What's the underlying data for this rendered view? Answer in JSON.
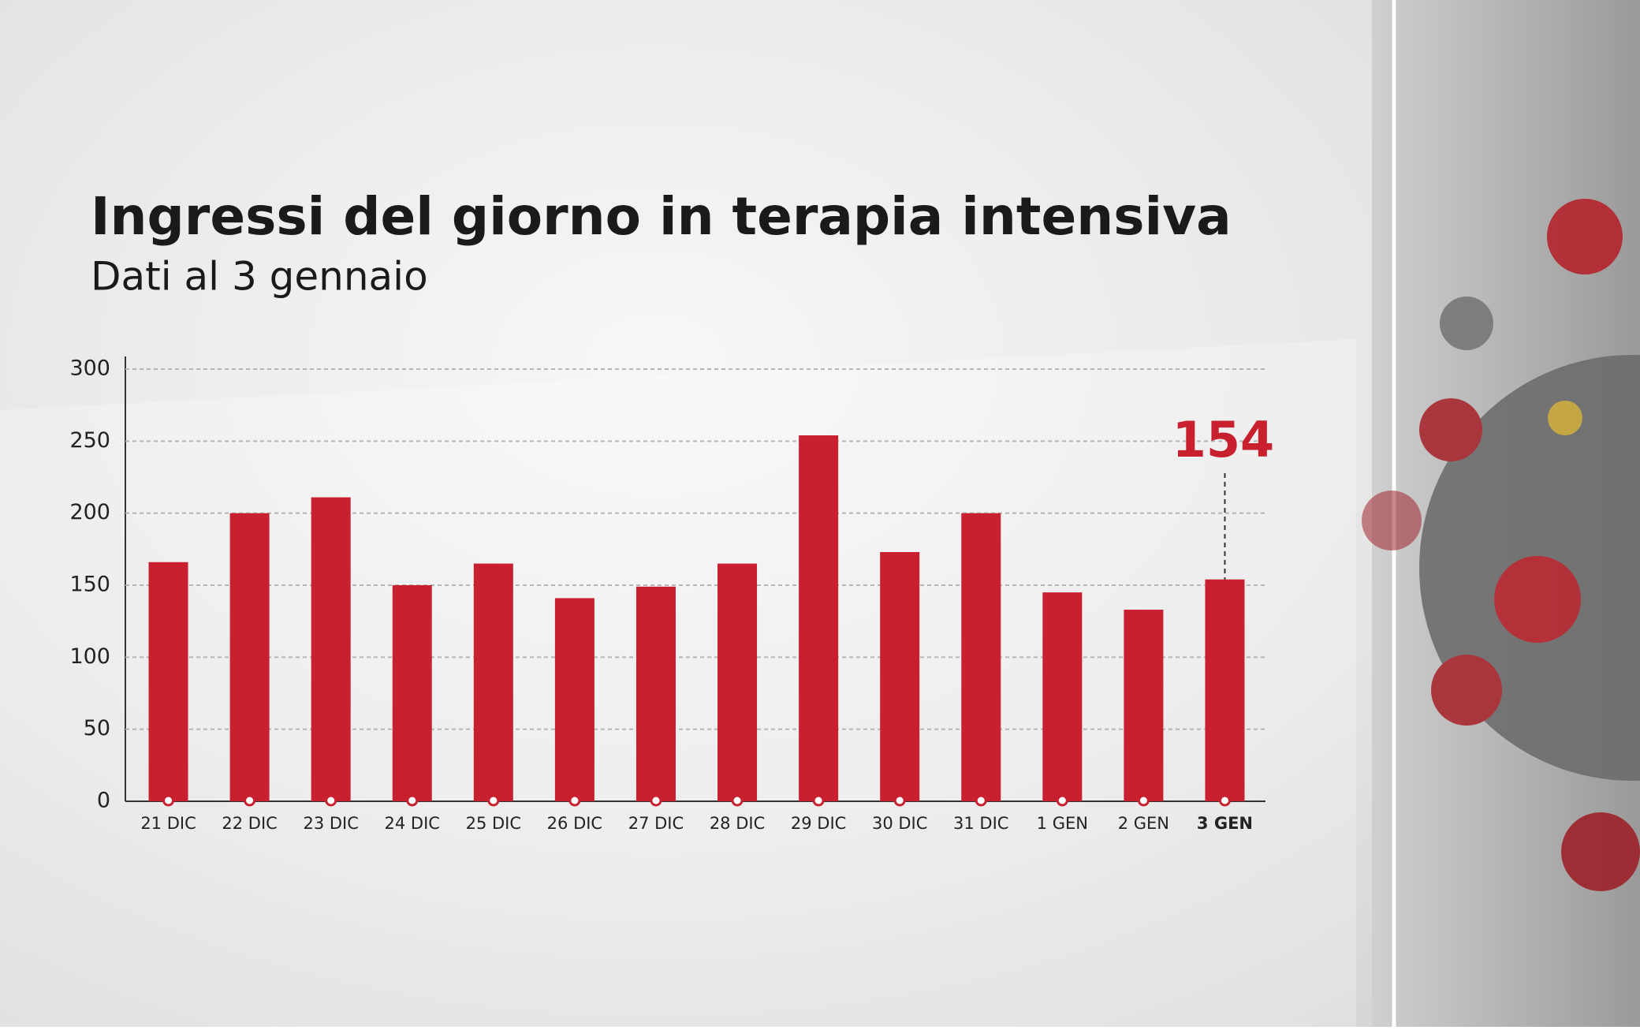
{
  "chart_data": {
    "type": "bar",
    "title": "Ingressi del giorno in terapia intensiva",
    "subtitle": "Dati al 3 gennaio",
    "categories": [
      "21 DIC",
      "22 DIC",
      "23 DIC",
      "24 DIC",
      "25 DIC",
      "26 DIC",
      "27 DIC",
      "28 DIC",
      "29 DIC",
      "30 DIC",
      "31 DIC",
      "1 GEN",
      "2 GEN",
      "3 GEN"
    ],
    "values": [
      166,
      200,
      211,
      150,
      165,
      141,
      149,
      165,
      254,
      173,
      200,
      145,
      133,
      154
    ],
    "color": "#c8202f",
    "ylim": [
      0,
      300
    ],
    "yticks": [
      0,
      50,
      100,
      150,
      200,
      250,
      300
    ],
    "grid": true
  }
}
